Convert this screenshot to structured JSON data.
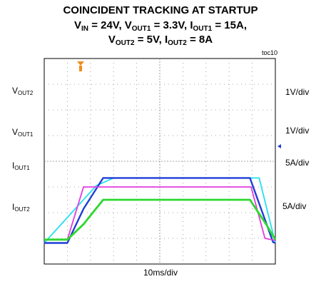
{
  "chart_data": {
    "type": "line",
    "title": {
      "line1": "COINCIDENT TRACKING AT STARTUP",
      "line2": [
        {
          "t": "V"
        },
        {
          "s": "IN"
        },
        {
          "t": " = 24V, V"
        },
        {
          "s": "OUT1"
        },
        {
          "t": " = 3.3V, I"
        },
        {
          "s": "OUT1"
        },
        {
          "t": " = 15A,"
        }
      ],
      "line3": [
        {
          "t": "V"
        },
        {
          "s": "OUT2"
        },
        {
          "t": " = 5V, I"
        },
        {
          "s": "OUT2"
        },
        {
          "t": " = 8A"
        }
      ]
    },
    "figure_id": "toc10",
    "xlabel": "10ms/div",
    "x_divisions": 10,
    "y_divisions": 8,
    "grid": true,
    "series": [
      {
        "name": [
          {
            "t": "V"
          },
          {
            "s": "OUT2"
          }
        ],
        "scale": "1V/div",
        "color": "#22e0ee",
        "points": [
          [
            0,
            0.82
          ],
          [
            2.25,
            3.05
          ],
          [
            3.0,
            3.35
          ],
          [
            9.3,
            3.35
          ],
          [
            10,
            0.82
          ]
        ]
      },
      {
        "name": [
          {
            "t": "V"
          },
          {
            "s": "OUT1"
          }
        ],
        "scale": "1V/div",
        "color": "#1f3fd6",
        "points": [
          [
            0,
            0.82
          ],
          [
            1.0,
            0.82
          ],
          [
            1.7,
            2.15
          ],
          [
            2.55,
            3.35
          ],
          [
            8.9,
            3.35
          ],
          [
            9.9,
            0.85
          ],
          [
            10,
            0.82
          ]
        ]
      },
      {
        "name": [
          {
            "t": "I"
          },
          {
            "s": "OUT1"
          }
        ],
        "scale": "5A/div",
        "color": "#e23ce0",
        "points": [
          [
            0,
            0.95
          ],
          [
            1.0,
            0.95
          ],
          [
            1.7,
            3.0
          ],
          [
            8.95,
            3.0
          ],
          [
            9.55,
            1.0
          ],
          [
            10,
            0.92
          ]
        ]
      },
      {
        "name": [
          {
            "t": "I"
          },
          {
            "s": "OUT2"
          }
        ],
        "scale": "5A/div",
        "color": "#2ed62e",
        "points": [
          [
            0,
            0.95
          ],
          [
            1.0,
            0.95
          ],
          [
            1.7,
            1.55
          ],
          [
            2.55,
            2.5
          ],
          [
            8.9,
            2.5
          ],
          [
            9.6,
            1.55
          ],
          [
            10,
            0.95
          ]
        ]
      }
    ]
  }
}
